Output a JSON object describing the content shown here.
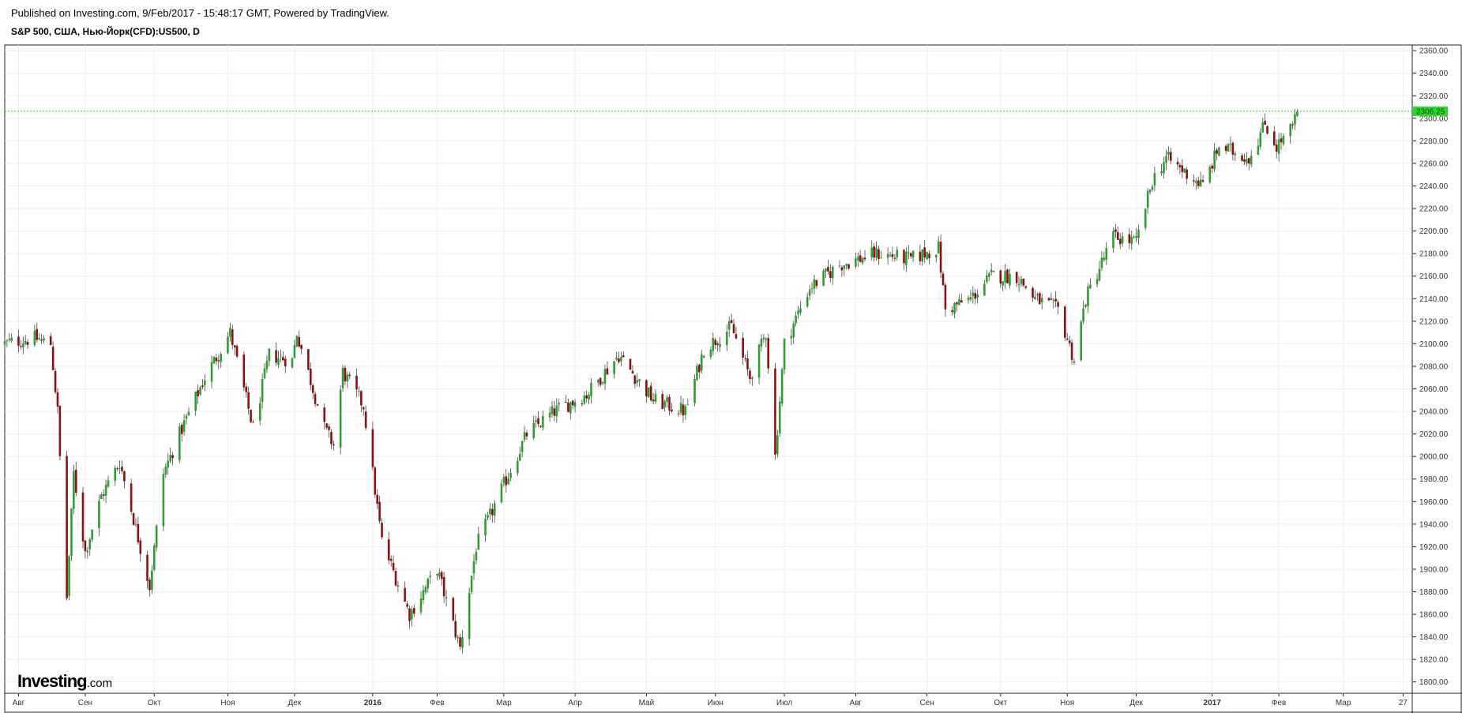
{
  "header": {
    "published": "Published on Investing.com, 9/Feb/2017 - 15:48:17 GMT, Powered by TradingView.",
    "symbol": "S&P 500, США, Нью-Йорк(CFD):US500, D"
  },
  "logo": {
    "brand": "Investing",
    "suffix": ".com"
  },
  "colors": {
    "up": "#2e9e2e",
    "down": "#8b1111",
    "price_line": "#22cc22",
    "price_tag_bg": "#22dd22",
    "grid": "#eeeeee"
  },
  "chart_data": {
    "type": "candlestick",
    "y_axis": {
      "min": 1790,
      "max": 2365,
      "ticks": [
        1800,
        1820,
        1840,
        1860,
        1880,
        1900,
        1920,
        1940,
        1960,
        1980,
        2000,
        2020,
        2040,
        2060,
        2080,
        2100,
        2120,
        2140,
        2160,
        2180,
        2200,
        2220,
        2240,
        2260,
        2280,
        2300,
        2320,
        2340,
        2360
      ],
      "tick_labels": [
        "1800.00",
        "1820.00",
        "1840.00",
        "1860.00",
        "1880.00",
        "1900.00",
        "1920.00",
        "1940.00",
        "1960.00",
        "1980.00",
        "2000.00",
        "2020.00",
        "2040.00",
        "2060.00",
        "2080.00",
        "2100.00",
        "2120.00",
        "2140.00",
        "2160.00",
        "2180.00",
        "2200.00",
        "2220.00",
        "2240.00",
        "2260.00",
        "2280.00",
        "2300.00",
        "2320.00",
        "2340.00",
        "2360.00"
      ]
    },
    "x_axis": {
      "start": "2015-07-28",
      "end": "2017-03-31",
      "ticks": [
        {
          "label": "Авг",
          "date": "2015-08-03",
          "bold": false
        },
        {
          "label": "Сен",
          "date": "2015-09-01",
          "bold": false
        },
        {
          "label": "Окт",
          "date": "2015-10-01",
          "bold": false
        },
        {
          "label": "Ноя",
          "date": "2015-11-02",
          "bold": false
        },
        {
          "label": "Дек",
          "date": "2015-12-01",
          "bold": false
        },
        {
          "label": "2016",
          "date": "2016-01-04",
          "bold": true
        },
        {
          "label": "Фев",
          "date": "2016-02-01",
          "bold": false
        },
        {
          "label": "Мар",
          "date": "2016-03-01",
          "bold": false
        },
        {
          "label": "Апр",
          "date": "2016-04-01",
          "bold": false
        },
        {
          "label": "Май",
          "date": "2016-05-02",
          "bold": false
        },
        {
          "label": "Июн",
          "date": "2016-06-01",
          "bold": false
        },
        {
          "label": "Июл",
          "date": "2016-07-01",
          "bold": false
        },
        {
          "label": "Авг",
          "date": "2016-08-01",
          "bold": false
        },
        {
          "label": "Сен",
          "date": "2016-09-01",
          "bold": false
        },
        {
          "label": "Окт",
          "date": "2016-10-03",
          "bold": false
        },
        {
          "label": "Ноя",
          "date": "2016-11-01",
          "bold": false
        },
        {
          "label": "Дек",
          "date": "2016-12-01",
          "bold": false
        },
        {
          "label": "2017",
          "date": "2017-01-03",
          "bold": true
        },
        {
          "label": "Фев",
          "date": "2017-02-01",
          "bold": false
        },
        {
          "label": "Мар",
          "date": "2017-03-01",
          "bold": false
        },
        {
          "label": "27",
          "date": "2017-03-27",
          "bold": false
        }
      ]
    },
    "last_price": 2306.25,
    "last_price_label": "2306.25",
    "grid": true,
    "anchors": [
      [
        "2015-07-28",
        2100
      ],
      [
        "2015-08-10",
        2105
      ],
      [
        "2015-08-17",
        2100
      ],
      [
        "2015-08-20",
        2040
      ],
      [
        "2015-08-24",
        1875
      ],
      [
        "2015-08-27",
        1985
      ],
      [
        "2015-09-01",
        1915
      ],
      [
        "2015-09-08",
        1965
      ],
      [
        "2015-09-16",
        1995
      ],
      [
        "2015-09-22",
        1945
      ],
      [
        "2015-09-29",
        1885
      ],
      [
        "2015-10-05",
        1985
      ],
      [
        "2015-10-12",
        2020
      ],
      [
        "2015-10-23",
        2070
      ],
      [
        "2015-11-03",
        2110
      ],
      [
        "2015-11-13",
        2025
      ],
      [
        "2015-11-20",
        2090
      ],
      [
        "2015-11-30",
        2085
      ],
      [
        "2015-12-02",
        2110
      ],
      [
        "2015-12-14",
        2025
      ],
      [
        "2015-12-18",
        2010
      ],
      [
        "2015-12-22",
        2075
      ],
      [
        "2015-12-31",
        2045
      ],
      [
        "2016-01-08",
        1925
      ],
      [
        "2016-01-20",
        1860
      ],
      [
        "2016-02-01",
        1900
      ],
      [
        "2016-02-11",
        1830
      ],
      [
        "2016-02-18",
        1920
      ],
      [
        "2016-03-01",
        1975
      ],
      [
        "2016-03-11",
        2020
      ],
      [
        "2016-03-23",
        2040
      ],
      [
        "2016-04-06",
        2055
      ],
      [
        "2016-04-20",
        2090
      ],
      [
        "2016-05-05",
        2050
      ],
      [
        "2016-05-19",
        2040
      ],
      [
        "2016-05-27",
        2095
      ],
      [
        "2016-06-08",
        2115
      ],
      [
        "2016-06-16",
        2070
      ],
      [
        "2016-06-23",
        2110
      ],
      [
        "2016-06-27",
        2000
      ],
      [
        "2016-07-01",
        2100
      ],
      [
        "2016-07-12",
        2150
      ],
      [
        "2016-07-25",
        2170
      ],
      [
        "2016-08-10",
        2180
      ],
      [
        "2016-08-25",
        2175
      ],
      [
        "2016-09-06",
        2185
      ],
      [
        "2016-09-09",
        2130
      ],
      [
        "2016-09-20",
        2140
      ],
      [
        "2016-09-29",
        2160
      ],
      [
        "2016-10-10",
        2160
      ],
      [
        "2016-10-18",
        2140
      ],
      [
        "2016-10-28",
        2130
      ],
      [
        "2016-11-04",
        2085
      ],
      [
        "2016-11-09",
        2140
      ],
      [
        "2016-11-21",
        2195
      ],
      [
        "2016-12-01",
        2190
      ],
      [
        "2016-12-08",
        2245
      ],
      [
        "2016-12-14",
        2265
      ],
      [
        "2016-12-30",
        2240
      ],
      [
        "2017-01-06",
        2275
      ],
      [
        "2017-01-19",
        2265
      ],
      [
        "2017-01-26",
        2295
      ],
      [
        "2017-01-31",
        2275
      ],
      [
        "2017-02-07",
        2292
      ],
      [
        "2017-02-09",
        2306.25
      ]
    ]
  }
}
